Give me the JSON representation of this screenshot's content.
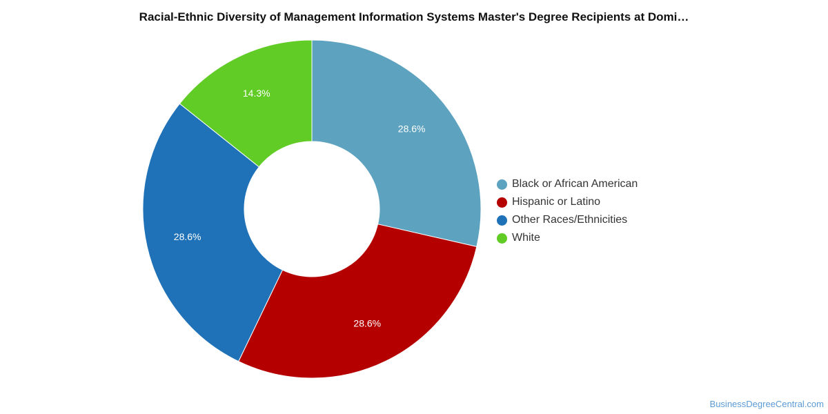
{
  "chart_data": {
    "type": "pie",
    "title": "Racial-Ethnic Diversity of Management Information Systems Master's Degree Recipients at Domi…",
    "donut": true,
    "categories": [
      "Black or African American",
      "Hispanic or Latino",
      "Other Races/Ethnicities",
      "White"
    ],
    "values": [
      28.6,
      28.6,
      28.6,
      14.3
    ],
    "value_labels": [
      "28.6%",
      "28.6%",
      "28.6%",
      "14.3%"
    ],
    "colors": [
      "#5da2bf",
      "#b50000",
      "#1f72b8",
      "#62cc26"
    ],
    "legend_position": "right"
  },
  "watermark": "BusinessDegreeCentral.com"
}
